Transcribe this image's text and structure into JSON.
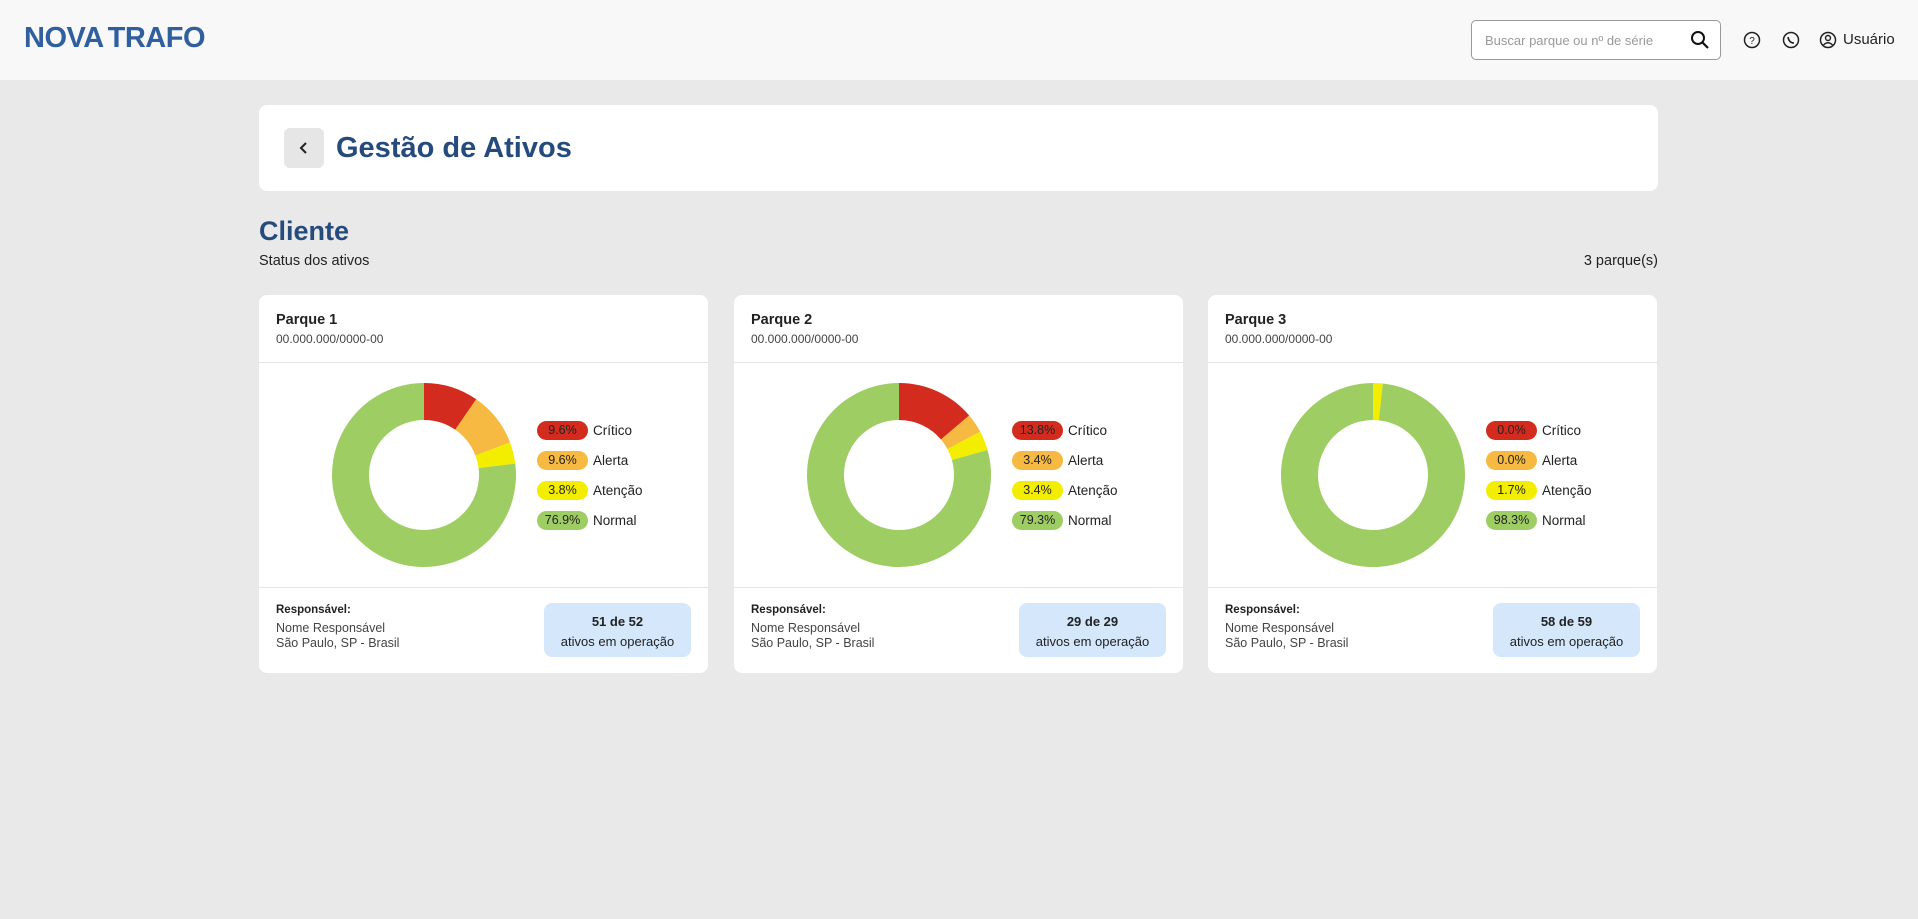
{
  "header": {
    "logo": [
      "NOVA",
      "TRAFO"
    ],
    "search_placeholder": "Buscar parque ou nº de série",
    "user": "Usuário"
  },
  "page": {
    "title": "Gestão de Ativos",
    "client": "Cliente",
    "subtitle": "Status dos ativos",
    "count": "3 parque(s)"
  },
  "parks": [
    {
      "name": "Parque 1",
      "id": "00.000.000/0000-00",
      "responsible_label": "Responsável:",
      "responsible": "Nome Responsável",
      "location": "São Paulo, SP - Brasil",
      "operating": "51 de 52",
      "operating_label": "ativos em operação",
      "chart_data": {
        "type": "donut",
        "categories": [
          "Crítico",
          "Alerta",
          "Atenção",
          "Normal"
        ],
        "values": [
          9.6,
          9.6,
          3.8,
          76.9
        ],
        "value_labels": [
          "9.6%",
          "9.6%",
          "3.8%",
          "76.9%"
        ],
        "colors": [
          "#d42b1f",
          "#f6b941",
          "#f3ee00",
          "#9ecd63"
        ]
      }
    },
    {
      "name": "Parque 2",
      "id": "00.000.000/0000-00",
      "responsible_label": "Responsável:",
      "responsible": "Nome Responsável",
      "location": "São Paulo, SP - Brasil",
      "operating": "29 de 29",
      "operating_label": "ativos em operação",
      "chart_data": {
        "type": "donut",
        "categories": [
          "Crítico",
          "Alerta",
          "Atenção",
          "Normal"
        ],
        "values": [
          13.8,
          3.4,
          3.4,
          79.3
        ],
        "value_labels": [
          "13.8%",
          "3.4%",
          "3.4%",
          "79.3%"
        ],
        "colors": [
          "#d42b1f",
          "#f6b941",
          "#f3ee00",
          "#9ecd63"
        ]
      }
    },
    {
      "name": "Parque 3",
      "id": "00.000.000/0000-00",
      "responsible_label": "Responsável:",
      "responsible": "Nome Responsável",
      "location": "São Paulo, SP - Brasil",
      "operating": "58 de 59",
      "operating_label": "ativos em operação",
      "chart_data": {
        "type": "donut",
        "categories": [
          "Crítico",
          "Alerta",
          "Atenção",
          "Normal"
        ],
        "values": [
          0.0,
          0.0,
          1.7,
          98.3
        ],
        "value_labels": [
          "0.0%",
          "0.0%",
          "1.7%",
          "98.3%"
        ],
        "colors": [
          "#d42b1f",
          "#f6b941",
          "#f3ee00",
          "#9ecd63"
        ]
      }
    }
  ]
}
